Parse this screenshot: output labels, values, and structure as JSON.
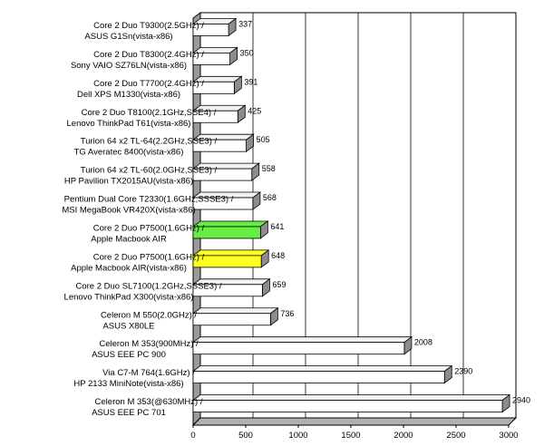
{
  "chart_data": {
    "type": "bar",
    "orientation": "horizontal",
    "title": "",
    "xlabel": "",
    "ylabel": "",
    "xlim": [
      0,
      3000
    ],
    "x_ticks": [
      0,
      500,
      1000,
      1500,
      2000,
      2500,
      3000
    ],
    "grid": true,
    "legend": "none",
    "categories": [
      {
        "line1": "Core 2 Duo T9300(2.5GHz) /",
        "line2": "ASUS G1Sn(vista-x86)"
      },
      {
        "line1": "Core 2 Duo T8300(2.4GHz) /",
        "line2": "Sony VAIO SZ76LN(vista-x86)"
      },
      {
        "line1": "Core 2 Duo T7700(2.4GHz) /",
        "line2": "Dell XPS M1330(vista-x86)"
      },
      {
        "line1": "Core 2 Duo T8100(2.1GHz,SSE4) /",
        "line2": "Lenovo ThinkPad T61(vista-x86)"
      },
      {
        "line1": "Turion 64 x2 TL-64(2.2GHz,SSE3) /",
        "line2": "TG Averatec 8400(vista-x86)"
      },
      {
        "line1": "Turion 64 x2 TL-60(2.0GHz,SSE3) /",
        "line2": "HP Pavilion TX2015AU(vista-x86)"
      },
      {
        "line1": "Pentium Dual Core T2330(1.6GHz,SSSE3) /",
        "line2": "MSI MegaBook VR420X(vista-x86)"
      },
      {
        "line1": "Core 2 Duo P7500(1.6GHz) /",
        "line2": "Apple Macbook AIR"
      },
      {
        "line1": "Core 2 Duo P7500(1.6GHz) /",
        "line2": "Apple Macbook AIR(vista-x86)"
      },
      {
        "line1": "Core 2 Duo SL7100(1.2GHz,SSSE3) /",
        "line2": "Lenovo ThinkPad X300(vista-x86)"
      },
      {
        "line1": "Celeron M 550(2.0GHz) /",
        "line2": "ASUS X80LE"
      },
      {
        "line1": "Celeron M 353(900MHz) /",
        "line2": "ASUS EEE PC 900"
      },
      {
        "line1": "Via C7-M 764(1.6GHz) /",
        "line2": "HP 2133 MiniNote(vista-x86)"
      },
      {
        "line1": "Celeron M 353(@630MHz) /",
        "line2": "ASUS EEE PC 701"
      }
    ],
    "values": [
      337,
      350,
      391,
      425,
      505,
      558,
      568,
      641,
      648,
      659,
      736,
      2008,
      2390,
      2940
    ],
    "value_labels": [
      "337",
      "350",
      "391",
      "425",
      "505",
      "558",
      "568",
      "641",
      "648",
      "659",
      "736",
      "2008",
      "2390",
      "2940"
    ],
    "bar_colors": [
      "#ffffff",
      "#ffffff",
      "#ffffff",
      "#ffffff",
      "#ffffff",
      "#ffffff",
      "#ffffff",
      "#66ee44",
      "#ffff22",
      "#ffffff",
      "#ffffff",
      "#ffffff",
      "#ffffff",
      "#ffffff"
    ]
  }
}
